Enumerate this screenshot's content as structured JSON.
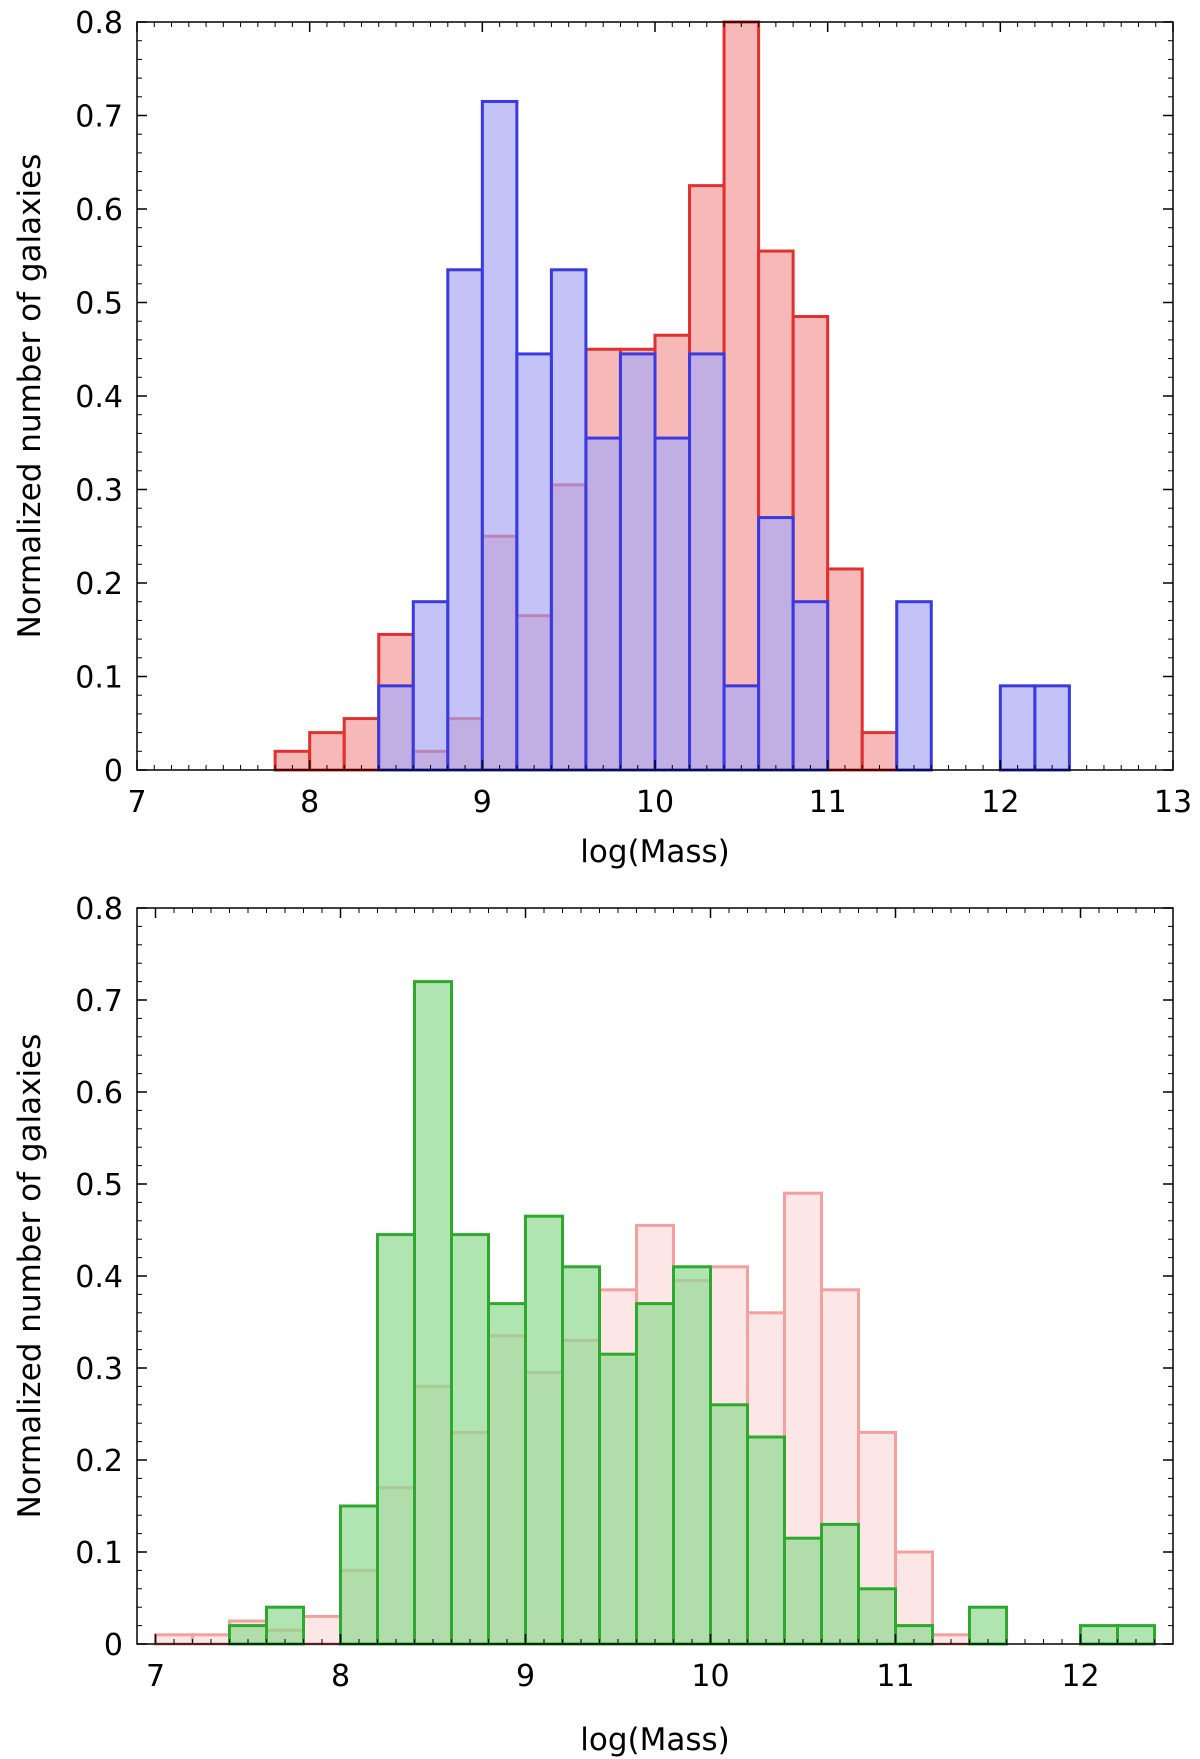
{
  "chart_data": [
    {
      "type": "bar",
      "bin_width": 0.2,
      "xlabel": "log(Mass)",
      "ylabel": "Normalized number of galaxies",
      "xlim": [
        7,
        13
      ],
      "ylim": [
        0,
        0.8
      ],
      "xticks": [
        "7",
        "8",
        "9",
        "10",
        "11",
        "12",
        "13"
      ],
      "yticks": [
        "0",
        "0.1",
        "0.2",
        "0.3",
        "0.4",
        "0.5",
        "0.6",
        "0.7",
        "0.8"
      ],
      "grid": false,
      "legend": "none",
      "series": [
        {
          "color": "#e03030",
          "fill": "#f4a0a0",
          "bin_starts": [
            7.8,
            8.0,
            8.2,
            8.4,
            8.6,
            8.8,
            9.0,
            9.2,
            9.4,
            9.6,
            9.8,
            10.0,
            10.2,
            10.4,
            10.6,
            10.8,
            11.0,
            11.2
          ],
          "values": [
            0.02,
            0.04,
            0.055,
            0.145,
            0.02,
            0.055,
            0.25,
            0.165,
            0.305,
            0.45,
            0.45,
            0.465,
            0.625,
            0.8,
            0.555,
            0.485,
            0.215,
            0.04
          ]
        },
        {
          "color": "#3a3ae0",
          "fill": "#a9a9f4",
          "bin_starts": [
            8.4,
            8.6,
            8.8,
            9.0,
            9.2,
            9.4,
            9.6,
            9.8,
            10.0,
            10.2,
            10.4,
            10.6,
            10.8,
            11.4,
            12.0,
            12.2
          ],
          "values": [
            0.09,
            0.18,
            0.535,
            0.715,
            0.445,
            0.535,
            0.355,
            0.445,
            0.355,
            0.445,
            0.09,
            0.27,
            0.18,
            0.18,
            0.09,
            0.09
          ]
        }
      ]
    },
    {
      "type": "bar",
      "bin_width": 0.2,
      "xlabel": "log(Mass)",
      "ylabel": "Normalized number of galaxies",
      "xlim": [
        6.9,
        12.5
      ],
      "ylim": [
        0,
        0.8
      ],
      "xticks": [
        "7",
        "8",
        "9",
        "10",
        "11",
        "12"
      ],
      "yticks": [
        "0",
        "0.1",
        "0.2",
        "0.3",
        "0.4",
        "0.5",
        "0.6",
        "0.7",
        "0.8"
      ],
      "grid": false,
      "legend": "none",
      "series": [
        {
          "color": "#f2a0a0",
          "fill": "#fcdede",
          "bin_starts": [
            7.0,
            7.2,
            7.4,
            7.6,
            7.8,
            8.0,
            8.2,
            8.4,
            8.6,
            8.8,
            9.0,
            9.2,
            9.4,
            9.6,
            9.8,
            10.0,
            10.2,
            10.4,
            10.6,
            10.8,
            11.0,
            11.2
          ],
          "values": [
            0.01,
            0.01,
            0.025,
            0.015,
            0.03,
            0.08,
            0.17,
            0.28,
            0.23,
            0.335,
            0.295,
            0.33,
            0.385,
            0.455,
            0.395,
            0.41,
            0.36,
            0.49,
            0.385,
            0.23,
            0.1,
            0.01
          ]
        },
        {
          "color": "#2fa82f",
          "fill": "#8fd88f",
          "bin_starts": [
            7.4,
            7.6,
            8.0,
            8.2,
            8.4,
            8.6,
            8.8,
            9.0,
            9.2,
            9.4,
            9.6,
            9.8,
            10.0,
            10.2,
            10.4,
            10.6,
            10.8,
            11.0,
            11.4,
            12.0,
            12.2
          ],
          "values": [
            0.02,
            0.04,
            0.15,
            0.445,
            0.72,
            0.445,
            0.37,
            0.465,
            0.41,
            0.315,
            0.37,
            0.41,
            0.26,
            0.225,
            0.115,
            0.13,
            0.06,
            0.02,
            0.04,
            0.02,
            0.02
          ]
        }
      ]
    }
  ]
}
